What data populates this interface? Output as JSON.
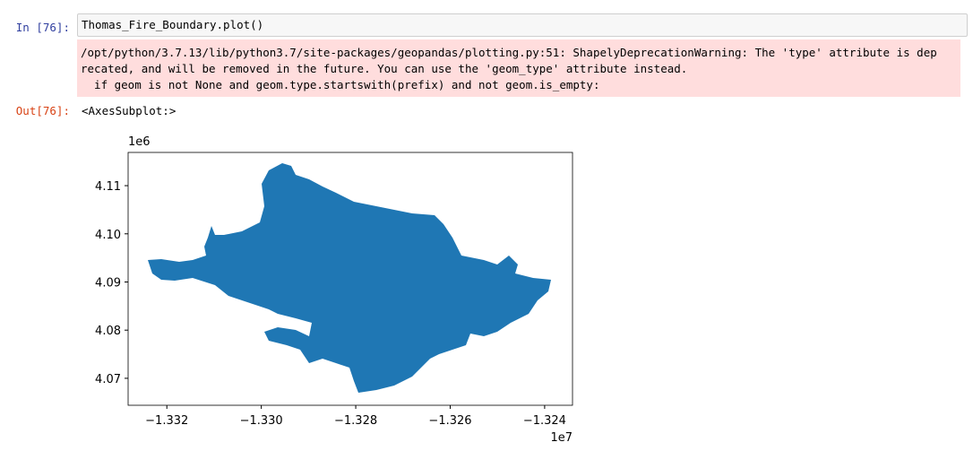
{
  "cell": {
    "in_prompt": "In [76]:",
    "code": "Thomas_Fire_Boundary.plot()",
    "stderr": [
      "/opt/python/3.7.13/lib/python3.7/site-packages/geopandas/plotting.py:51: ShapelyDeprecationWarning: The 'type' attribute is dep",
      "recated, and will be removed in the future. You can use the 'geom_type' attribute instead.",
      "  if geom is not None and geom.type.startswith(prefix) and not geom.is_empty:"
    ],
    "out_prompt": "Out[76]:",
    "output": "<AxesSubplot:>"
  },
  "plot": {
    "type": "map",
    "color": "#1f77b4",
    "x_offset": "1e7",
    "y_offset": "1e6",
    "xlim": [
      -1.33282,
      -1.32341
    ],
    "ylim": [
      4.0644,
      4.1169
    ],
    "xticks": [
      {
        "value": -1.332,
        "label": "−1.332"
      },
      {
        "value": -1.33,
        "label": "−1.330"
      },
      {
        "value": -1.328,
        "label": "−1.328"
      },
      {
        "value": -1.326,
        "label": "−1.326"
      },
      {
        "value": -1.324,
        "label": "−1.324"
      }
    ],
    "yticks": [
      4.07,
      4.08,
      4.09,
      {
        "value": 4.1,
        "label": "4.10"
      },
      4.11
    ]
  }
}
